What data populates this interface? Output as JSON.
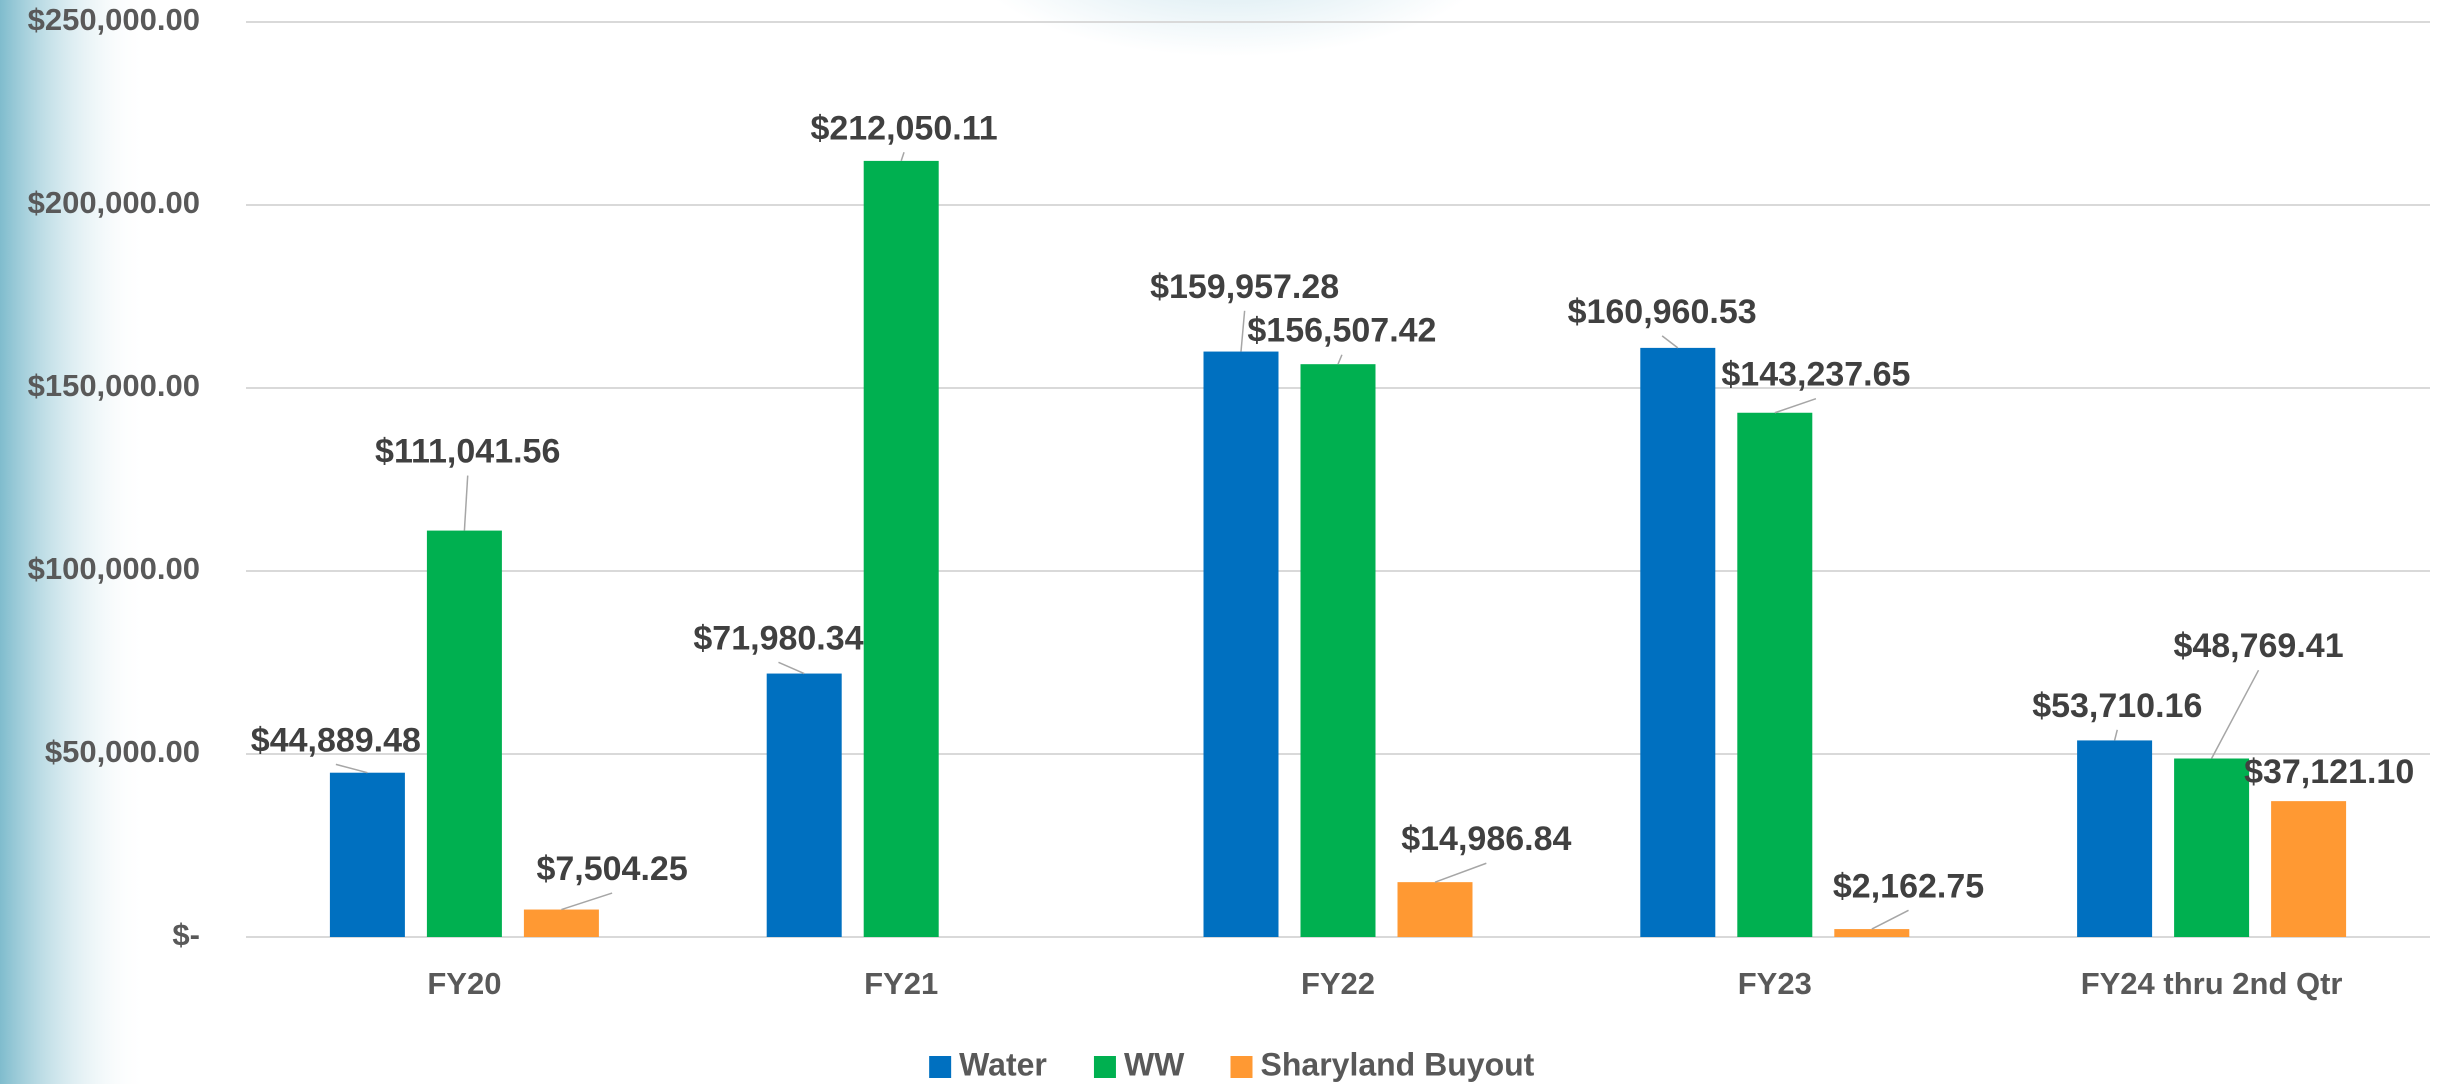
{
  "chart_data": {
    "type": "bar",
    "categories": [
      "FY20",
      "FY21",
      "FY22",
      "FY23",
      "FY24 thru 2nd Qtr"
    ],
    "series": [
      {
        "name": "Water",
        "color": "#0070c0",
        "values": [
          44889.48,
          71980.34,
          159957.28,
          160960.53,
          53710.16
        ],
        "value_labels": [
          "$44,889.48",
          "$71,980.34",
          "$159,957.28",
          "$160,960.53",
          "$53,710.16"
        ]
      },
      {
        "name": "WW",
        "color": "#00b050",
        "values": [
          111041.56,
          212050.11,
          156507.42,
          143237.65,
          48769.41
        ],
        "value_labels": [
          "$111,041.56",
          "$212,050.11",
          "$156,507.42",
          "$143,237.65",
          "$48,769.41"
        ]
      },
      {
        "name": "Sharyland Buyout",
        "color": "#ff9933",
        "values": [
          7504.25,
          null,
          14986.84,
          2162.75,
          37121.1
        ],
        "value_labels": [
          "$7,504.25",
          null,
          "$14,986.84",
          "$2,162.75",
          "$37,121.10"
        ]
      }
    ],
    "ylim": [
      0,
      250000
    ],
    "yticks": [
      {
        "value": 0,
        "label": "$-"
      },
      {
        "value": 50000,
        "label": "$50,000.00"
      },
      {
        "value": 100000,
        "label": "$100,000.00"
      },
      {
        "value": 150000,
        "label": "$150,000.00"
      },
      {
        "value": 200000,
        "label": "$200,000.00"
      },
      {
        "value": 250000,
        "label": "$250,000.00"
      }
    ],
    "grid": true,
    "legend": "bottom"
  }
}
